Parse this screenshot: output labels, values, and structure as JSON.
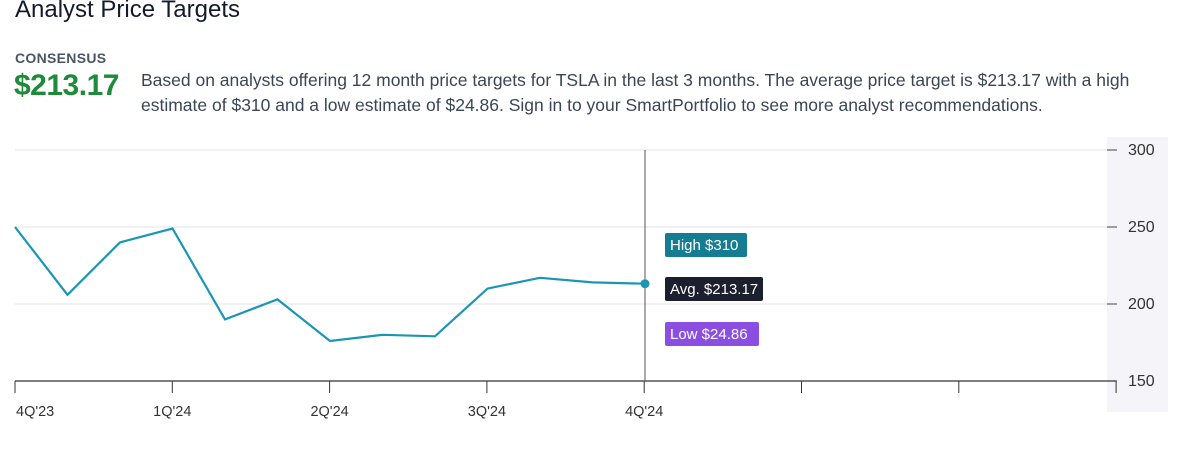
{
  "header": {
    "title": "Analyst Price Targets",
    "consensus_label": "CONSENSUS",
    "consensus_value": "$213.17",
    "description": "Based on analysts offering 12 month price targets for TSLA in the last 3 months. The average price target is $213.17 with a high estimate of $310 and a low estimate of $24.86. Sign in to your SmartPortfolio to see more analyst recommendations."
  },
  "colors": {
    "line": "#1a96b4",
    "high_tag": "#167c92",
    "avg_tag": "#1c1f2e",
    "low_tag": "#8a4fe0",
    "consensus": "#1e8a3a"
  },
  "chart_data": {
    "type": "line",
    "ylim": [
      150,
      300
    ],
    "yticks": [
      150,
      200,
      250,
      300
    ],
    "xticks": [
      "4Q'23",
      "1Q'24",
      "2Q'24",
      "3Q'24",
      "4Q'24",
      "",
      "",
      ""
    ],
    "grid": true,
    "series": [
      {
        "values": [
          250,
          206,
          240,
          249,
          190,
          203,
          176,
          180,
          179,
          210,
          217,
          214,
          213.17
        ]
      }
    ],
    "annotations": [
      {
        "label": "High $310",
        "kind": "high"
      },
      {
        "label": "Avg. $213.17",
        "kind": "avg"
      },
      {
        "label": "Low $24.86",
        "kind": "low"
      }
    ]
  }
}
